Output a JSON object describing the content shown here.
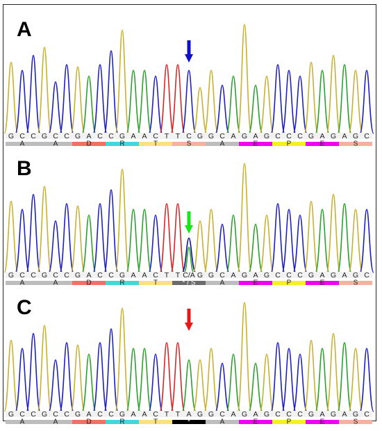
{
  "colors": {
    "A": "#2ca02c",
    "C": "#1f1fbf",
    "G": "#c9b030",
    "T": "#d62728",
    "arrow_A": "#1010c8",
    "arrow_B": "#19e619",
    "arrow_C": "#e61919"
  },
  "panels": [
    {
      "label": "A",
      "arrow_color": "arrow_A",
      "bases": [
        "G",
        "C",
        "C",
        "G",
        "C",
        "C",
        "G",
        "A",
        "C",
        "C",
        "G",
        "A",
        "A",
        "C",
        "T",
        "T",
        "C",
        "G",
        "G",
        "C",
        "A",
        "G",
        "A",
        "G",
        "C",
        "C",
        "C",
        "G",
        "A",
        "G",
        "A",
        "G",
        "C"
      ],
      "base_labels": [
        "G",
        "C",
        "C",
        "G",
        "C",
        "C",
        "G",
        "A",
        "C",
        "C",
        "G",
        "A",
        "A",
        "C",
        "T",
        "T",
        "C",
        "G",
        "G",
        "C",
        "A",
        "G",
        "A",
        "G",
        "C",
        "C",
        "C",
        "G",
        "A",
        "G",
        "A",
        "G",
        "C"
      ],
      "peak_heights": [
        0.62,
        0.55,
        0.68,
        0.75,
        0.45,
        0.6,
        0.58,
        0.5,
        0.6,
        0.72,
        0.9,
        0.55,
        0.55,
        0.5,
        0.6,
        0.6,
        0.55,
        0.4,
        0.55,
        0.42,
        0.5,
        0.95,
        0.42,
        0.5,
        0.6,
        0.55,
        0.5,
        0.62,
        0.55,
        0.68,
        0.6,
        0.55,
        0.55
      ],
      "amino_acids": [
        {
          "label": "A",
          "color": "#bdbdbd",
          "span": 3
        },
        {
          "label": "A",
          "color": "#bdbdbd",
          "span": 3
        },
        {
          "label": "D",
          "color": "#f07068",
          "span": 3
        },
        {
          "label": "R",
          "color": "#40d8d8",
          "span": 3
        },
        {
          "label": "T",
          "color": "#fde080",
          "span": 3
        },
        {
          "label": "S",
          "color": "#f6b2a0",
          "span": 3
        },
        {
          "label": "A",
          "color": "#bdbdbd",
          "span": 3
        },
        {
          "label": "E",
          "color": "#f000f0",
          "span": 3
        },
        {
          "label": "P",
          "color": "#f6f020",
          "span": 3
        },
        {
          "label": "E",
          "color": "#f000f0",
          "span": 3
        },
        {
          "label": "S",
          "color": "#f6b2a0",
          "span": 3
        }
      ]
    },
    {
      "label": "B",
      "arrow_color": "arrow_B",
      "bases": [
        "G",
        "C",
        "C",
        "G",
        "C",
        "C",
        "G",
        "A",
        "C",
        "C",
        "G",
        "A",
        "A",
        "C",
        "T",
        "T",
        "C",
        "G",
        "G",
        "C",
        "A",
        "G",
        "A",
        "G",
        "C",
        "C",
        "C",
        "G",
        "A",
        "G",
        "A",
        "G",
        "C"
      ],
      "base_labels": [
        "G",
        "C",
        "C",
        "G",
        "C",
        "C",
        "G",
        "A",
        "C",
        "C",
        "G",
        "A",
        "A",
        "C",
        "T",
        "T",
        "C/A",
        "G",
        "G",
        "C",
        "A",
        "G",
        "A",
        "G",
        "C",
        "C",
        "C",
        "G",
        "A",
        "G",
        "A",
        "G",
        "C"
      ],
      "peak_heights": [
        0.62,
        0.55,
        0.68,
        0.75,
        0.45,
        0.6,
        0.58,
        0.5,
        0.6,
        0.72,
        0.9,
        0.55,
        0.55,
        0.5,
        0.6,
        0.6,
        0.3,
        0.45,
        0.55,
        0.42,
        0.5,
        0.95,
        0.42,
        0.5,
        0.6,
        0.55,
        0.5,
        0.62,
        0.55,
        0.68,
        0.6,
        0.55,
        0.55
      ],
      "amino_acids": [
        {
          "label": "A",
          "color": "#bdbdbd",
          "span": 3
        },
        {
          "label": "A",
          "color": "#bdbdbd",
          "span": 3
        },
        {
          "label": "D",
          "color": "#f07068",
          "span": 3
        },
        {
          "label": "R",
          "color": "#40d8d8",
          "span": 3
        },
        {
          "label": "T",
          "color": "#fde080",
          "span": 3
        },
        {
          "label": "* / S",
          "color": "#6b6b6b",
          "span": 3,
          "dark": true
        },
        {
          "label": "A",
          "color": "#bdbdbd",
          "span": 3
        },
        {
          "label": "E",
          "color": "#f000f0",
          "span": 3
        },
        {
          "label": "P",
          "color": "#f6f020",
          "span": 3
        },
        {
          "label": "E",
          "color": "#f000f0",
          "span": 3
        },
        {
          "label": "S",
          "color": "#f6b2a0",
          "span": 3
        }
      ]
    },
    {
      "label": "C",
      "arrow_color": "arrow_C",
      "bases": [
        "G",
        "C",
        "C",
        "G",
        "C",
        "C",
        "G",
        "A",
        "C",
        "C",
        "G",
        "A",
        "A",
        "C",
        "T",
        "T",
        "A",
        "G",
        "G",
        "C",
        "A",
        "G",
        "A",
        "G",
        "C",
        "C",
        "C",
        "G",
        "A",
        "G",
        "A",
        "G",
        "C"
      ],
      "base_labels": [
        "G",
        "C",
        "C",
        "G",
        "C",
        "C",
        "G",
        "A",
        "C",
        "C",
        "G",
        "A",
        "A",
        "C",
        "T",
        "T",
        "A",
        "G",
        "G",
        "C",
        "A",
        "G",
        "A",
        "G",
        "C",
        "C",
        "C",
        "G",
        "A",
        "G",
        "A",
        "G",
        "C"
      ],
      "peak_heights": [
        0.62,
        0.55,
        0.68,
        0.75,
        0.45,
        0.6,
        0.58,
        0.5,
        0.6,
        0.72,
        0.9,
        0.55,
        0.55,
        0.5,
        0.6,
        0.6,
        0.45,
        0.45,
        0.55,
        0.42,
        0.5,
        0.95,
        0.42,
        0.5,
        0.6,
        0.55,
        0.5,
        0.62,
        0.55,
        0.68,
        0.6,
        0.55,
        0.55
      ],
      "amino_acids": [
        {
          "label": "A",
          "color": "#bdbdbd",
          "span": 3
        },
        {
          "label": "A",
          "color": "#bdbdbd",
          "span": 3
        },
        {
          "label": "D",
          "color": "#f07068",
          "span": 3
        },
        {
          "label": "R",
          "color": "#40d8d8",
          "span": 3
        },
        {
          "label": "T",
          "color": "#fde080",
          "span": 3
        },
        {
          "label": "*",
          "color": "#000000",
          "span": 3,
          "dark": true
        },
        {
          "label": "A",
          "color": "#bdbdbd",
          "span": 3
        },
        {
          "label": "E",
          "color": "#f000f0",
          "span": 3
        },
        {
          "label": "P",
          "color": "#f6f020",
          "span": 3
        },
        {
          "label": "E",
          "color": "#f000f0",
          "span": 3
        },
        {
          "label": "S",
          "color": "#f6b2a0",
          "span": 3
        }
      ]
    }
  ]
}
